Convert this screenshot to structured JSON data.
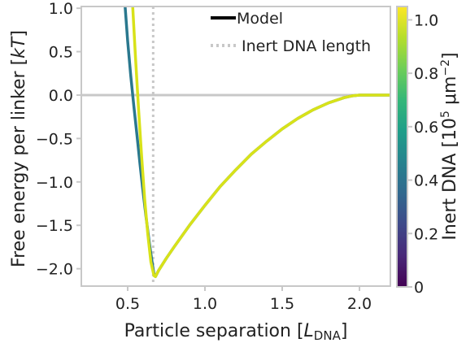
{
  "colors": {
    "spine": "#c8c8c8",
    "zero_line": "#c8c8c8",
    "model_legend": "#000000",
    "inert_line": "#c8c8c8",
    "series_low": "#2a788e",
    "series_high": "#d8e219",
    "text": "#222222"
  },
  "colorbar": {
    "label_main": "Inert DNA [10",
    "label_sup": "5",
    "label_mid": " μm",
    "label_sup2": "−2",
    "label_end": "]",
    "range": [
      0,
      1.05
    ],
    "ticks": [
      {
        "value": 0,
        "label": "0"
      },
      {
        "value": 0.2,
        "label": "0.2"
      },
      {
        "value": 0.4,
        "label": "0.4"
      },
      {
        "value": 0.6,
        "label": "0.6"
      },
      {
        "value": 0.8,
        "label": "0.8"
      },
      {
        "value": 1.0,
        "label": "1.0"
      }
    ],
    "colormap": "viridis",
    "stops": [
      "#440154",
      "#482878",
      "#3e4989",
      "#31688e",
      "#26828e",
      "#1f9e89",
      "#35b779",
      "#6ece58",
      "#b5de2b",
      "#fde725"
    ]
  },
  "chart_data": {
    "type": "line",
    "title": "",
    "xlabel_main": "Particle separation [",
    "xlabel_italic": "L",
    "xlabel_sub": "DNA",
    "xlabel_end": "]",
    "ylabel_main": "Free energy per linker [",
    "ylabel_italic": "kT",
    "ylabel_end": "]",
    "xlim": [
      0.2,
      2.2
    ],
    "ylim": [
      -2.2,
      1.02
    ],
    "xticks": [
      {
        "value": 0.5,
        "label": "0.5"
      },
      {
        "value": 1.0,
        "label": "1.0"
      },
      {
        "value": 1.5,
        "label": "1.5"
      },
      {
        "value": 2.0,
        "label": "2.0"
      }
    ],
    "yticks": [
      {
        "value": 1.0,
        "label": "1.0"
      },
      {
        "value": 0.5,
        "label": "0.5"
      },
      {
        "value": 0.0,
        "label": "0.0"
      },
      {
        "value": -0.5,
        "label": "−0.5"
      },
      {
        "value": -1.0,
        "label": "−1.0"
      },
      {
        "value": -1.5,
        "label": "−1.5"
      },
      {
        "value": -2.0,
        "label": "−2.0"
      }
    ],
    "zero_line": 0,
    "inert_dna_length_x": 0.665,
    "legend": {
      "placement": "top-right",
      "entries": [
        {
          "label": "Model",
          "style": "solid"
        },
        {
          "label": "Inert DNA length",
          "style": "dotted"
        }
      ]
    },
    "series": [
      {
        "inert_dna": 0.55,
        "color": "#2a788e",
        "x": [
          0.48,
          0.5,
          0.52,
          0.54,
          0.56,
          0.58,
          0.6,
          0.62,
          0.64,
          0.66,
          0.67,
          0.68,
          0.7,
          0.75,
          0.8,
          0.9,
          1.0,
          1.1,
          1.2,
          1.3,
          1.4,
          1.5,
          1.6,
          1.7,
          1.8,
          1.9,
          1.95,
          2.0,
          2.05,
          2.1,
          2.2
        ],
        "y": [
          1.1,
          0.62,
          0.22,
          -0.13,
          -0.46,
          -0.8,
          -1.12,
          -1.42,
          -1.7,
          -1.95,
          -2.06,
          -2.09,
          -2.02,
          -1.88,
          -1.75,
          -1.5,
          -1.27,
          -1.05,
          -0.86,
          -0.68,
          -0.53,
          -0.39,
          -0.27,
          -0.17,
          -0.09,
          -0.03,
          -0.01,
          0.0,
          0.0,
          0.0,
          0.0
        ]
      },
      {
        "inert_dna": 1.05,
        "color": "#d8e219",
        "x": [
          0.53,
          0.55,
          0.57,
          0.59,
          0.61,
          0.63,
          0.65,
          0.67,
          0.68,
          0.7,
          0.75,
          0.8,
          0.9,
          1.0,
          1.1,
          1.2,
          1.3,
          1.4,
          1.5,
          1.6,
          1.7,
          1.8,
          1.9,
          1.95,
          2.0,
          2.05,
          2.1,
          2.2
        ],
        "y": [
          1.1,
          0.45,
          -0.15,
          -0.7,
          -1.2,
          -1.6,
          -1.92,
          -2.08,
          -2.09,
          -2.02,
          -1.88,
          -1.75,
          -1.5,
          -1.27,
          -1.05,
          -0.86,
          -0.68,
          -0.53,
          -0.39,
          -0.27,
          -0.17,
          -0.09,
          -0.03,
          -0.01,
          0.0,
          0.0,
          0.0,
          0.0
        ]
      }
    ]
  }
}
